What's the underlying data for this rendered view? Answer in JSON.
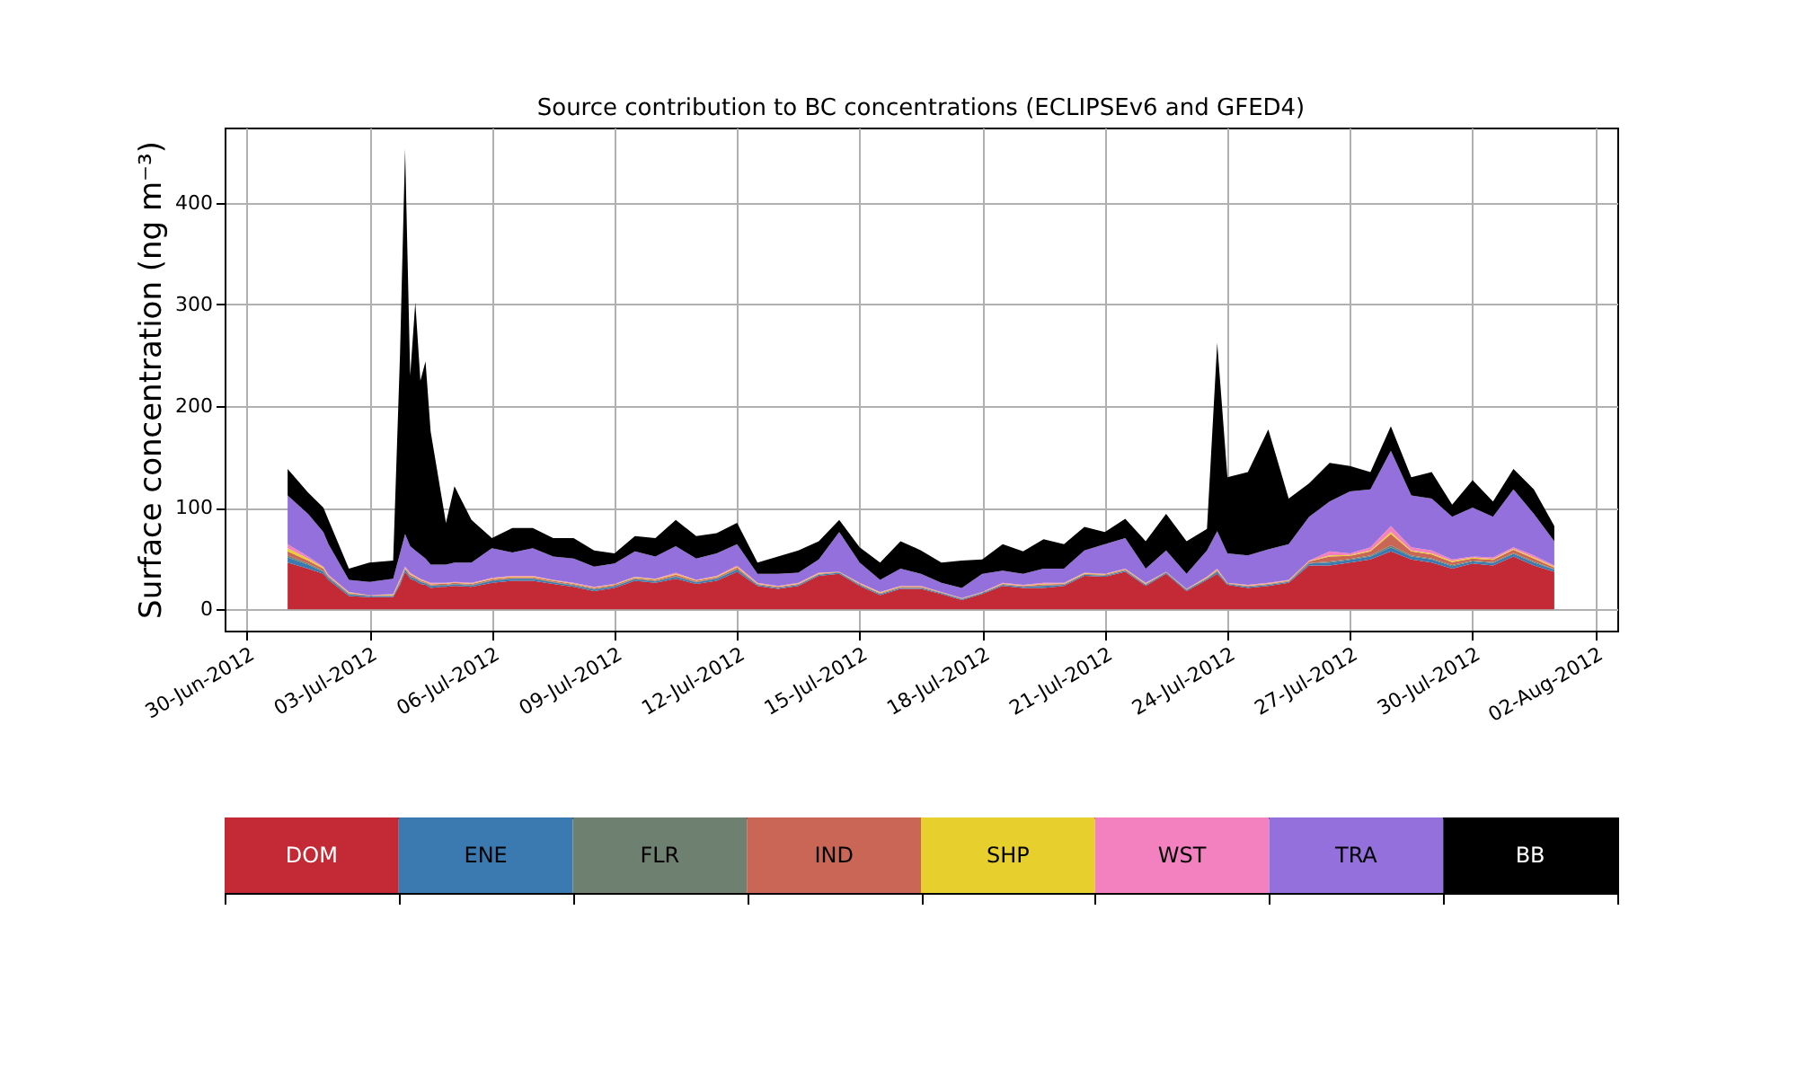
{
  "chart_data": {
    "type": "area",
    "stacked": true,
    "title": "Source contribution to BC concentrations (ECLIPSEv6 and GFED4)",
    "ylabel": "Surface concentration (ng m⁻³)",
    "x": [
      "2012-07-01T00:00",
      "2012-07-01T12:00",
      "2012-07-01T21:00",
      "2012-07-02T00:00",
      "2012-07-02T12:00",
      "2012-07-03T00:00",
      "2012-07-03T14:00",
      "2012-07-03T18:00",
      "2012-07-03T21:00",
      "2012-07-04T00:00",
      "2012-07-04T03:00",
      "2012-07-04T06:00",
      "2012-07-04T09:00",
      "2012-07-04T12:00",
      "2012-07-04T18:00",
      "2012-07-04T21:00",
      "2012-07-05T02:00",
      "2012-07-05T12:00",
      "2012-07-06T00:00",
      "2012-07-06T12:00",
      "2012-07-07T00:00",
      "2012-07-07T12:00",
      "2012-07-08T00:00",
      "2012-07-08T12:00",
      "2012-07-09T00:00",
      "2012-07-09T12:00",
      "2012-07-10T00:00",
      "2012-07-10T12:00",
      "2012-07-11T00:00",
      "2012-07-11T12:00",
      "2012-07-12T00:00",
      "2012-07-12T12:00",
      "2012-07-13T00:00",
      "2012-07-13T12:00",
      "2012-07-14T00:00",
      "2012-07-14T12:00",
      "2012-07-15T00:00",
      "2012-07-15T12:00",
      "2012-07-16T00:00",
      "2012-07-16T12:00",
      "2012-07-17T00:00",
      "2012-07-17T12:00",
      "2012-07-18T00:00",
      "2012-07-18T12:00",
      "2012-07-19T00:00",
      "2012-07-19T12:00",
      "2012-07-20T00:00",
      "2012-07-20T12:00",
      "2012-07-21T00:00",
      "2012-07-21T12:00",
      "2012-07-22T00:00",
      "2012-07-22T12:00",
      "2012-07-23T00:00",
      "2012-07-23T12:00",
      "2012-07-23T18:00",
      "2012-07-24T00:00",
      "2012-07-24T12:00",
      "2012-07-25T00:00",
      "2012-07-25T12:00",
      "2012-07-26T00:00",
      "2012-07-26T12:00",
      "2012-07-27T00:00",
      "2012-07-27T12:00",
      "2012-07-28T00:00",
      "2012-07-28T12:00",
      "2012-07-29T00:00",
      "2012-07-29T12:00",
      "2012-07-30T00:00",
      "2012-07-30T12:00",
      "2012-07-31T00:00",
      "2012-07-31T12:00",
      "2012-08-01T00:00"
    ],
    "series": [
      {
        "name": "DOM",
        "color": "#c32a36",
        "values": [
          46,
          40,
          35,
          29,
          13,
          12,
          12,
          24,
          37,
          30,
          28,
          25,
          24,
          21,
          22,
          22,
          23,
          22,
          26,
          28,
          28,
          25,
          22,
          18,
          21,
          28,
          26,
          30,
          25,
          28,
          37,
          23,
          20,
          23,
          33,
          35,
          23,
          14,
          20,
          20,
          15,
          9,
          15,
          23,
          21,
          21,
          23,
          33,
          32,
          37,
          23,
          35,
          18,
          29,
          35,
          24,
          21,
          23,
          26,
          43,
          43,
          46,
          49,
          57,
          49,
          46,
          40,
          45,
          43,
          52,
          43,
          37
        ]
      },
      {
        "name": "ENE",
        "color": "#3a7ab0",
        "values": [
          5,
          4,
          2,
          2,
          1.5,
          1,
          1,
          2,
          2,
          2,
          2,
          2,
          1.5,
          2,
          1.5,
          1.5,
          1.5,
          1.5,
          2,
          2,
          2,
          1.5,
          1.5,
          1.5,
          1.5,
          1.5,
          1.5,
          2,
          1.5,
          2,
          2,
          1,
          1,
          1,
          1,
          1,
          1,
          1,
          1,
          1,
          1,
          1,
          1,
          1,
          1,
          2,
          1,
          1,
          1,
          1,
          1,
          1,
          1,
          1,
          2,
          1,
          1,
          1,
          1,
          2,
          3,
          2.5,
          3,
          4,
          3,
          3,
          2.5,
          2,
          2.5,
          2.5,
          3,
          2
        ]
      },
      {
        "name": "FLR",
        "color": "#6e8070",
        "values": [
          2,
          1,
          1,
          0.5,
          0.5,
          0.2,
          0.3,
          0.5,
          0.5,
          0.5,
          0.5,
          0.5,
          0.5,
          0.5,
          0.5,
          0.5,
          0.5,
          0.5,
          0.5,
          0.5,
          0.5,
          0.5,
          0.5,
          0.5,
          0.5,
          0.5,
          0.5,
          0.5,
          0.5,
          0.5,
          0.5,
          0.3,
          0.3,
          0.3,
          0.3,
          0.2,
          0.3,
          0.3,
          0.3,
          0.3,
          0.2,
          0.2,
          0.2,
          0.3,
          0.3,
          0.5,
          0.3,
          0.3,
          0.3,
          0.3,
          0.3,
          0.2,
          0.2,
          0.3,
          0.5,
          0.2,
          0.3,
          0.3,
          0.3,
          0.5,
          1,
          1,
          1,
          2,
          1,
          1,
          1,
          1,
          1,
          1,
          1,
          0.5
        ]
      },
      {
        "name": "IND",
        "color": "#c96656",
        "values": [
          4,
          3,
          2,
          1,
          1,
          0.4,
          0.7,
          1.5,
          1,
          1.5,
          1,
          1,
          1,
          1,
          1,
          1,
          1,
          1,
          1,
          1,
          1,
          1,
          1,
          1,
          1,
          1,
          1,
          1.5,
          1,
          1,
          1.5,
          0.7,
          0.7,
          0.7,
          0.7,
          0.4,
          0.7,
          0.7,
          0.7,
          0.7,
          0.4,
          0.4,
          0.4,
          0.7,
          0.7,
          1,
          0.7,
          0.7,
          0.7,
          0.7,
          0.7,
          0.4,
          0.4,
          0.7,
          1,
          0.4,
          0.7,
          0.7,
          0.7,
          1.5,
          5,
          3,
          4,
          11,
          4,
          4,
          3,
          2,
          2,
          3,
          3,
          1.5
        ]
      },
      {
        "name": "SHP",
        "color": "#e7cf2e",
        "values": [
          3,
          2,
          1,
          0.5,
          0.5,
          0.2,
          0.5,
          1,
          0.7,
          1,
          0.7,
          0.7,
          0.5,
          0.7,
          0.5,
          0.5,
          0.5,
          0.5,
          0.7,
          0.7,
          0.7,
          0.5,
          0.5,
          0.5,
          0.5,
          0.5,
          0.5,
          1,
          0.5,
          0.7,
          1,
          0.5,
          0.5,
          0.5,
          0.5,
          0.2,
          0.5,
          0.5,
          0.5,
          0.5,
          0.2,
          0.2,
          0.2,
          0.5,
          0.5,
          0.7,
          0.5,
          0.5,
          0.5,
          0.5,
          0.5,
          0.2,
          0.2,
          0.5,
          0.7,
          0.2,
          0.5,
          0.5,
          0.5,
          0.5,
          1,
          1,
          1,
          2,
          1,
          1,
          1,
          1,
          1,
          1,
          1,
          1
        ]
      },
      {
        "name": "WST",
        "color": "#f381bf",
        "values": [
          4,
          2,
          1,
          1,
          0.5,
          0.2,
          0.5,
          1,
          0.8,
          1,
          0.8,
          0.8,
          0.5,
          0.8,
          0.5,
          0.5,
          0.5,
          0.5,
          0.8,
          0.8,
          0.8,
          0.5,
          0.5,
          0.5,
          0.5,
          0.5,
          0.5,
          1,
          0.5,
          0.8,
          1,
          0.5,
          0.5,
          0.5,
          0.5,
          0.2,
          0.5,
          0.5,
          0.5,
          0.5,
          0.2,
          0.2,
          0.2,
          0.5,
          0.5,
          0.8,
          0.5,
          0.5,
          0.5,
          0.5,
          0.5,
          0.2,
          0.2,
          0.5,
          0.8,
          0.2,
          0.5,
          0.5,
          0.5,
          0.5,
          4,
          1.5,
          3,
          6,
          3,
          3,
          1.5,
          1,
          1.5,
          1.5,
          2,
          1
        ]
      },
      {
        "name": "TRA",
        "color": "#9370db",
        "values": [
          48,
          42,
          34,
          30,
          12,
          13,
          15,
          25,
          32,
          26,
          25,
          24,
          22,
          18,
          18,
          18,
          19,
          20,
          29,
          23,
          27,
          23,
          24,
          20,
          20,
          25,
          22,
          26,
          21,
          22,
          21,
          9,
          12,
          10,
          13,
          39,
          20,
          12,
          17,
          12,
          9,
          10,
          18,
          12,
          11,
          14,
          14,
          22,
          29,
          30,
          14,
          21,
          15,
          26,
          37,
          29,
          29,
          33,
          35,
          43,
          49,
          61,
          57,
          74,
          51,
          51,
          42,
          48,
          40,
          57,
          41,
          24
        ]
      },
      {
        "name": "BB",
        "color": "#000000",
        "values": [
          26,
          21,
          24,
          24,
          11,
          19,
          18,
          195,
          379,
          168,
          244,
          171,
          194,
          131,
          71,
          41,
          75,
          42,
          10,
          24,
          20,
          18,
          20,
          16,
          10,
          15,
          18,
          26,
          22,
          20,
          21,
          11,
          17,
          22,
          18,
          12,
          15,
          17,
          27,
          23,
          20,
          27,
          14,
          26,
          22,
          29,
          24,
          23,
          12,
          19,
          27,
          36,
          32,
          21,
          185,
          75,
          82,
          118,
          45,
          33,
          38,
          25,
          17,
          24,
          18,
          26,
          12,
          27,
          15,
          20,
          24,
          15
        ]
      }
    ],
    "xlim": [
      "2012-06-29T11:00",
      "2012-08-02T13:00"
    ],
    "xticks": [
      {
        "value": "2012-06-30",
        "label": "30-Jun-2012"
      },
      {
        "value": "2012-07-03",
        "label": "03-Jul-2012"
      },
      {
        "value": "2012-07-06",
        "label": "06-Jul-2012"
      },
      {
        "value": "2012-07-09",
        "label": "09-Jul-2012"
      },
      {
        "value": "2012-07-12",
        "label": "12-Jul-2012"
      },
      {
        "value": "2012-07-15",
        "label": "15-Jul-2012"
      },
      {
        "value": "2012-07-18",
        "label": "18-Jul-2012"
      },
      {
        "value": "2012-07-21",
        "label": "21-Jul-2012"
      },
      {
        "value": "2012-07-24",
        "label": "24-Jul-2012"
      },
      {
        "value": "2012-07-27",
        "label": "27-Jul-2012"
      },
      {
        "value": "2012-07-30",
        "label": "30-Jul-2012"
      },
      {
        "value": "2012-08-02",
        "label": "02-Aug-2012"
      }
    ],
    "ylim": [
      -21,
      474
    ],
    "yticks": [
      0,
      100,
      200,
      300,
      400
    ],
    "grid": true,
    "legend": "bottom"
  }
}
